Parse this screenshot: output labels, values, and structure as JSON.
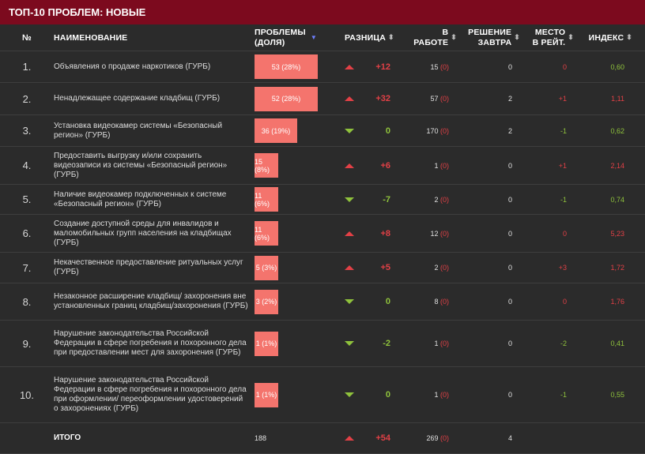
{
  "title": "ТОП-10 ПРОБЛЕМ: НОВЫЕ",
  "headers": {
    "num": "№",
    "name": "НАИМЕНОВАНИЕ",
    "problems_l1": "ПРОБЛЕМЫ",
    "problems_l2": "(ДОЛЯ)",
    "diff": "РАЗНИЦА",
    "work_l1": "В",
    "work_l2": "РАБОТЕ",
    "tomorrow_l1": "РЕШЕНИЕ",
    "tomorrow_l2": "ЗАВТРА",
    "place_l1": "МЕСТО",
    "place_l2": "В РЕЙТ.",
    "index": "ИНДЕКС"
  },
  "rows": [
    {
      "num": "1.",
      "name": "Объявления о продаже наркотиков (ГУРБ)",
      "problems": "53 (28%)",
      "share": 28,
      "trend": "up",
      "diff": "+12",
      "work": "15",
      "work_new": "(0)",
      "tomorrow": "0",
      "place": "0",
      "index": "0,60",
      "color": "#e24046",
      "index_color": "#8fc23c"
    },
    {
      "num": "2.",
      "name": "Ненадлежащее содержание кладбищ (ГУРБ)",
      "problems": "52 (28%)",
      "share": 28,
      "trend": "up",
      "diff": "+32",
      "work": "57",
      "work_new": "(0)",
      "tomorrow": "2",
      "place": "+1",
      "index": "1,11",
      "color": "#e24046",
      "index_color": "#e24046"
    },
    {
      "num": "3.",
      "name": "Установка видеокамер системы «Безопасный регион» (ГУРБ)",
      "problems": "36 (19%)",
      "share": 19,
      "trend": "down",
      "diff": "0",
      "work": "170",
      "work_new": "(0)",
      "tomorrow": "2",
      "place": "-1",
      "index": "0,62",
      "color": "#8fc23c",
      "index_color": "#8fc23c"
    },
    {
      "num": "4.",
      "name": "Предоставить выгрузку и/или сохранить видеозаписи из системы «Безопасный регион» (ГУРБ)",
      "problems": "15 (8%)",
      "share": 8,
      "trend": "up",
      "diff": "+6",
      "work": "1",
      "work_new": "(0)",
      "tomorrow": "0",
      "place": "+1",
      "index": "2,14",
      "color": "#e24046",
      "index_color": "#e24046"
    },
    {
      "num": "5.",
      "name": "Наличие видеокамер подключенных к системе «Безопасный регион» (ГУРБ)",
      "problems": "11 (6%)",
      "share": 6,
      "trend": "down",
      "diff": "-7",
      "work": "2",
      "work_new": "(0)",
      "tomorrow": "0",
      "place": "-1",
      "index": "0,74",
      "color": "#8fc23c",
      "index_color": "#8fc23c"
    },
    {
      "num": "6.",
      "name": "Создание доступной среды для инвалидов и маломобильных групп населения на кладбищах (ГУРБ)",
      "problems": "11 (6%)",
      "share": 6,
      "trend": "up",
      "diff": "+8",
      "work": "12",
      "work_new": "(0)",
      "tomorrow": "0",
      "place": "0",
      "index": "5,23",
      "color": "#e24046",
      "index_color": "#e24046"
    },
    {
      "num": "7.",
      "name": "Некачественное предоставление ритуальных услуг (ГУРБ)",
      "problems": "5 (3%)",
      "share": 3,
      "trend": "up",
      "diff": "+5",
      "work": "2",
      "work_new": "(0)",
      "tomorrow": "0",
      "place": "+3",
      "index": "1,72",
      "color": "#e24046",
      "index_color": "#e24046"
    },
    {
      "num": "8.",
      "name": "Незаконное расширение кладбищ/ захоронения вне установленных границ кладбищ/захоронения (ГУРБ)",
      "problems": "3 (2%)",
      "share": 2,
      "trend": "down",
      "diff": "0",
      "work": "8",
      "work_new": "(0)",
      "tomorrow": "0",
      "place": "0",
      "index": "1,76",
      "color": "#8fc23c",
      "index_color": "#e24046"
    },
    {
      "num": "9.",
      "name": "Нарушение законодательства Российской Федерации в сфере погребения и похоронного дела при предоставлении мест для захоронения (ГУРБ)",
      "problems": "1 (1%)",
      "share": 1,
      "trend": "down",
      "diff": "-2",
      "work": "1",
      "work_new": "(0)",
      "tomorrow": "0",
      "place": "-2",
      "index": "0,41",
      "color": "#8fc23c",
      "index_color": "#8fc23c"
    },
    {
      "num": "10.",
      "name": "Нарушение законодательства Российской Федерации в сфере погребения и похоронного дела при оформлении/ переоформлении удостоверений о захоронениях (ГУРБ)",
      "problems": "1 (1%)",
      "share": 1,
      "trend": "down",
      "diff": "0",
      "work": "1",
      "work_new": "(0)",
      "tomorrow": "0",
      "place": "-1",
      "index": "0,55",
      "color": "#8fc23c",
      "index_color": "#8fc23c"
    }
  ],
  "total": {
    "label": "ИТОГО",
    "problems": "188",
    "trend": "up",
    "diff": "+54",
    "work": "269",
    "work_new": "(0)",
    "tomorrow": "4"
  }
}
